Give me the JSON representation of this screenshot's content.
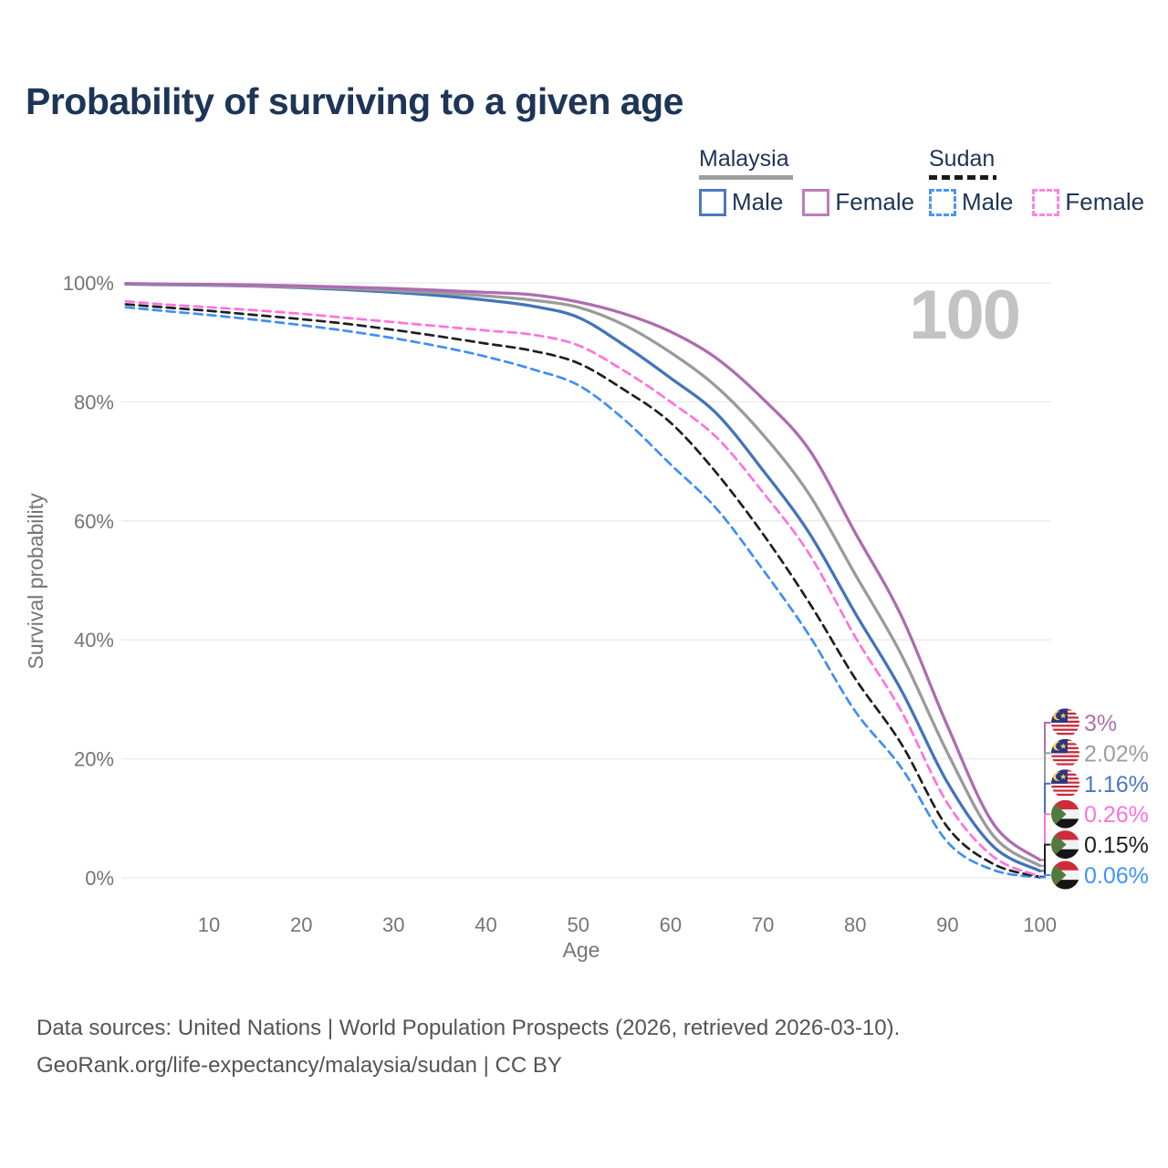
{
  "title": "Probability of surviving to a given age",
  "watermark": "100",
  "legend": {
    "groups": [
      {
        "label": "Malaysia",
        "underline": {
          "style": "solid",
          "color": "#9e9e9e",
          "width": 103
        },
        "items": [
          {
            "label": "Male",
            "color": "#4b79bd",
            "style": "solid"
          },
          {
            "label": "Female",
            "color": "#bc7cba",
            "style": "solid"
          }
        ]
      },
      {
        "label": "Sudan",
        "underline": {
          "style": "dashed",
          "color": "#1a1a1a",
          "width": 74
        },
        "items": [
          {
            "label": "Male",
            "color": "#4b95f5",
            "style": "dashed"
          },
          {
            "label": "Female",
            "color": "#ff85e2",
            "style": "dashed"
          }
        ]
      }
    ]
  },
  "chart_data": {
    "type": "line",
    "title": "Probability of surviving to a given age",
    "xlabel": "Age",
    "ylabel": "Survival probability",
    "xlim": [
      0,
      100
    ],
    "ylim_percent": [
      0,
      100
    ],
    "grid": "horizontal",
    "legend_position": "top-right",
    "x_ticks": [
      {
        "label": "10",
        "value": 10
      },
      {
        "label": "20",
        "value": 20
      },
      {
        "label": "30",
        "value": 30
      },
      {
        "label": "40",
        "value": 40
      },
      {
        "label": "50",
        "value": 50
      },
      {
        "label": "60",
        "value": 60
      },
      {
        "label": "70",
        "value": 70
      },
      {
        "label": "80",
        "value": 80
      },
      {
        "label": "90",
        "value": 90
      },
      {
        "label": "100",
        "value": 100
      }
    ],
    "y_ticks": [
      {
        "label": "0%",
        "value": 0
      },
      {
        "label": "20%",
        "value": 20
      },
      {
        "label": "40%",
        "value": 40
      },
      {
        "label": "60%",
        "value": 60
      },
      {
        "label": "80%",
        "value": 80
      },
      {
        "label": "100%",
        "value": 100
      }
    ],
    "ages": [
      1,
      5,
      10,
      15,
      20,
      25,
      30,
      35,
      40,
      45,
      50,
      55,
      60,
      65,
      70,
      75,
      80,
      85,
      90,
      95,
      100
    ],
    "series": [
      {
        "name": "Malaysia Female",
        "country": "malaysia",
        "group": "Malaysia",
        "sex": "Female",
        "style": "solid",
        "color": "#ae6cb0",
        "end_label": "3%",
        "end_label_color": "#b06fb2",
        "values": [
          99.9,
          99.8,
          99.75,
          99.65,
          99.5,
          99.3,
          99.05,
          98.75,
          98.4,
          98.0,
          96.8,
          94.8,
          91.8,
          87.3,
          80.5,
          72.0,
          58.0,
          44.0,
          25.5,
          9.0,
          3.0
        ]
      },
      {
        "name": "Malaysia Both sexes",
        "country": "malaysia",
        "group": "Malaysia",
        "sex": "Both",
        "style": "solid",
        "color": "#9a9a9a",
        "end_label": "2.02%",
        "end_label_color": "#9e9e9e",
        "values": [
          99.85,
          99.75,
          99.65,
          99.5,
          99.3,
          99.05,
          98.7,
          98.3,
          97.8,
          97.1,
          95.9,
          92.9,
          88.3,
          82.5,
          74.5,
          64.5,
          51.0,
          37.5,
          21.0,
          7.0,
          2.02
        ]
      },
      {
        "name": "Malaysia Male",
        "country": "malaysia",
        "group": "Malaysia",
        "sex": "Male",
        "style": "solid",
        "color": "#4374b9",
        "end_label": "1.16%",
        "end_label_color": "#4b79bd",
        "values": [
          99.8,
          99.7,
          99.6,
          99.45,
          99.2,
          98.85,
          98.4,
          97.85,
          97.1,
          96.1,
          94.2,
          89.5,
          84.0,
          78.0,
          68.5,
          58.0,
          44.5,
          31.5,
          16.0,
          5.2,
          1.16
        ]
      },
      {
        "name": "Sudan Female",
        "country": "sudan",
        "group": "Sudan",
        "sex": "Female",
        "style": "dashed",
        "color": "#ff72dd",
        "end_label": "0.26%",
        "end_label_color": "#ff72dd",
        "values": [
          96.9,
          96.4,
          95.9,
          95.4,
          94.8,
          94.1,
          93.4,
          92.7,
          92.0,
          91.3,
          89.5,
          85.2,
          80.0,
          74.0,
          64.8,
          54.5,
          40.5,
          28.0,
          12.5,
          3.5,
          0.26
        ]
      },
      {
        "name": "Sudan Both sexes",
        "country": "sudan",
        "group": "Sudan",
        "sex": "Both",
        "style": "dashed",
        "color": "#1f1f1f",
        "end_label": "0.15%",
        "end_label_color": "#1f1f1f",
        "values": [
          96.4,
          95.9,
          95.3,
          94.6,
          93.9,
          93.1,
          92.1,
          91.0,
          89.8,
          88.6,
          86.5,
          82.0,
          76.5,
          68.0,
          57.8,
          46.3,
          33.5,
          22.5,
          8.5,
          2.3,
          0.15
        ]
      },
      {
        "name": "Sudan Male",
        "country": "sudan",
        "group": "Sudan",
        "sex": "Male",
        "style": "dashed",
        "color": "#3f8ef5",
        "end_label": "0.06%",
        "end_label_color": "#3f94fb",
        "values": [
          95.9,
          95.3,
          94.6,
          93.8,
          92.9,
          91.9,
          90.7,
          89.3,
          87.6,
          85.5,
          82.8,
          77.0,
          69.5,
          62.0,
          51.8,
          40.8,
          28.0,
          18.5,
          6.0,
          1.3,
          0.06
        ]
      }
    ]
  },
  "footer": {
    "line1": "Data sources: United Nations | World Population Prospects (2026, retrieved 2026-03-10).",
    "line2": "GeoRank.org/life-expectancy/malaysia/sudan | CC BY"
  }
}
